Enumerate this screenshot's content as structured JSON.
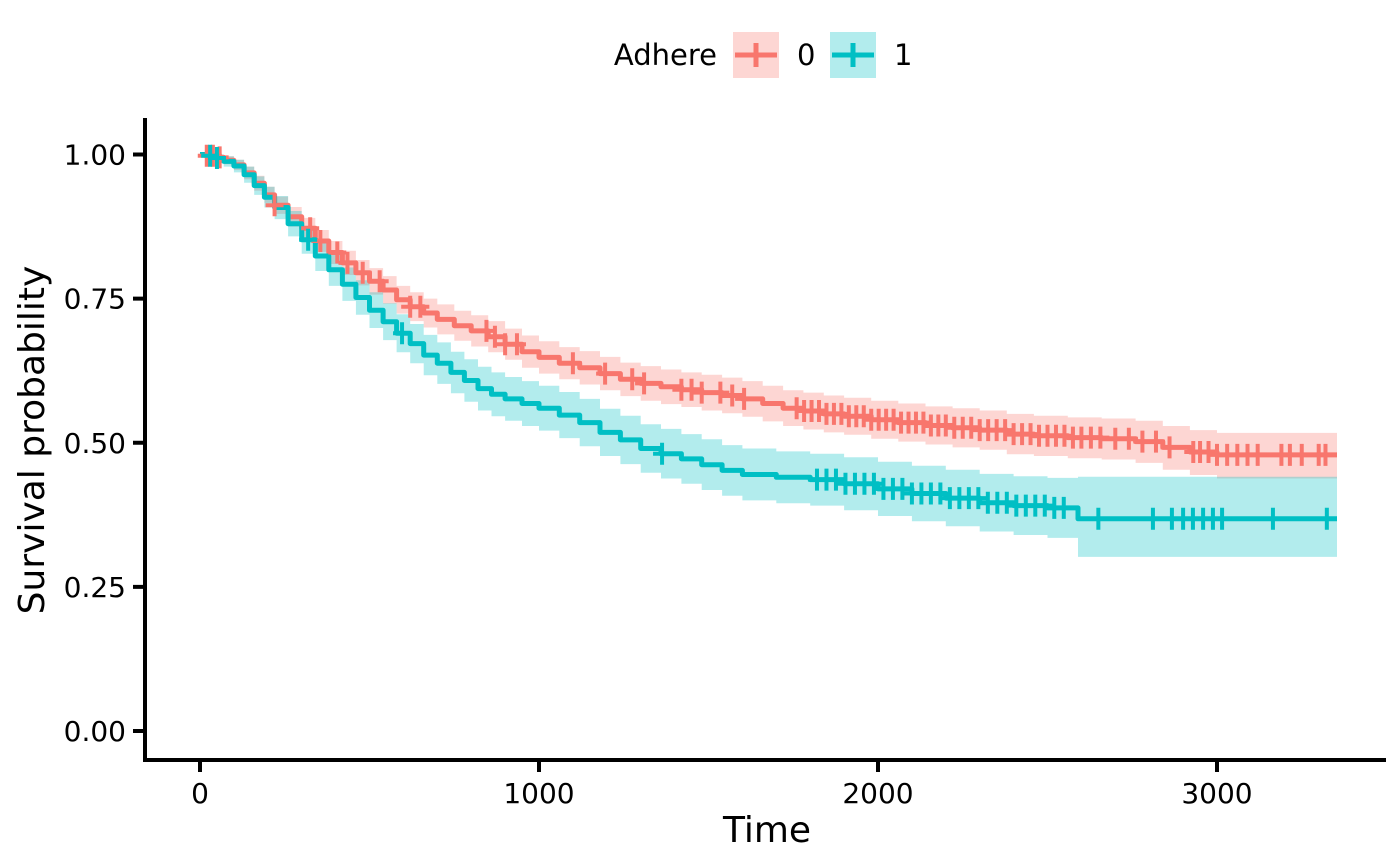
{
  "chart_data": {
    "type": "line",
    "subtype": "kaplan-meier-survival-curves",
    "title": "",
    "xlabel": "Time",
    "ylabel": "Survival probability",
    "x_tick_values": [
      0,
      1000,
      2000,
      3000
    ],
    "x_tick_labels": [
      "0",
      "1000",
      "2000",
      "3000"
    ],
    "y_tick_values": [
      1.0,
      0.75,
      0.5,
      0.25,
      0.0
    ],
    "y_tick_labels": [
      "1.00",
      "0.75",
      "0.50",
      "0.25",
      "0.00"
    ],
    "xlim": [
      0,
      3490
    ],
    "ylim": [
      0,
      1
    ],
    "grid": false,
    "band_opacity": 0.3,
    "axis_color": "#000000",
    "legend": {
      "title": "Adhere",
      "position": "top",
      "entries": [
        {
          "label": "0",
          "color": "#F8766D"
        },
        {
          "label": "1",
          "color": "#00BFC4"
        }
      ]
    },
    "series": [
      {
        "name": "0",
        "color": "#F8766D",
        "points": [
          [
            0,
            1.0,
            1.0,
            1.0
          ],
          [
            20,
            0.998,
            0.994,
            1.0
          ],
          [
            45,
            0.995,
            0.99,
            1.0
          ],
          [
            70,
            0.99,
            0.983,
            0.997
          ],
          [
            100,
            0.982,
            0.973,
            0.991
          ],
          [
            130,
            0.968,
            0.957,
            0.979
          ],
          [
            160,
            0.95,
            0.937,
            0.963
          ],
          [
            190,
            0.93,
            0.916,
            0.944
          ],
          [
            220,
            0.912,
            0.897,
            0.927
          ],
          [
            260,
            0.892,
            0.875,
            0.909
          ],
          [
            300,
            0.872,
            0.854,
            0.89
          ],
          [
            340,
            0.85,
            0.831,
            0.869
          ],
          [
            380,
            0.83,
            0.81,
            0.85
          ],
          [
            420,
            0.812,
            0.791,
            0.833
          ],
          [
            460,
            0.795,
            0.773,
            0.817
          ],
          [
            500,
            0.78,
            0.757,
            0.803
          ],
          [
            540,
            0.765,
            0.741,
            0.789
          ],
          [
            580,
            0.748,
            0.724,
            0.772
          ],
          [
            620,
            0.736,
            0.711,
            0.761
          ],
          [
            660,
            0.725,
            0.7,
            0.75
          ],
          [
            700,
            0.714,
            0.688,
            0.74
          ],
          [
            750,
            0.703,
            0.677,
            0.729
          ],
          [
            800,
            0.694,
            0.667,
            0.721
          ],
          [
            850,
            0.684,
            0.657,
            0.711
          ],
          [
            900,
            0.671,
            0.644,
            0.698
          ],
          [
            950,
            0.658,
            0.63,
            0.686
          ],
          [
            1000,
            0.648,
            0.62,
            0.676
          ],
          [
            1060,
            0.638,
            0.61,
            0.666
          ],
          [
            1120,
            0.63,
            0.601,
            0.659
          ],
          [
            1180,
            0.62,
            0.591,
            0.649
          ],
          [
            1240,
            0.61,
            0.581,
            0.639
          ],
          [
            1300,
            0.603,
            0.573,
            0.633
          ],
          [
            1360,
            0.597,
            0.567,
            0.627
          ],
          [
            1420,
            0.592,
            0.562,
            0.622
          ],
          [
            1480,
            0.587,
            0.556,
            0.618
          ],
          [
            1540,
            0.582,
            0.551,
            0.613
          ],
          [
            1600,
            0.576,
            0.545,
            0.607
          ],
          [
            1660,
            0.568,
            0.537,
            0.599
          ],
          [
            1720,
            0.56,
            0.529,
            0.591
          ],
          [
            1780,
            0.555,
            0.523,
            0.587
          ],
          [
            1840,
            0.55,
            0.518,
            0.582
          ],
          [
            1900,
            0.546,
            0.514,
            0.578
          ],
          [
            1980,
            0.54,
            0.507,
            0.573
          ],
          [
            2060,
            0.535,
            0.502,
            0.568
          ],
          [
            2140,
            0.53,
            0.497,
            0.563
          ],
          [
            2220,
            0.526,
            0.492,
            0.56
          ],
          [
            2300,
            0.522,
            0.488,
            0.556
          ],
          [
            2380,
            0.515,
            0.48,
            0.55
          ],
          [
            2460,
            0.512,
            0.477,
            0.547
          ],
          [
            2560,
            0.509,
            0.473,
            0.544
          ],
          [
            2660,
            0.507,
            0.471,
            0.542
          ],
          [
            2760,
            0.502,
            0.465,
            0.538
          ],
          [
            2840,
            0.492,
            0.453,
            0.529
          ],
          [
            2920,
            0.484,
            0.444,
            0.522
          ],
          [
            3000,
            0.479,
            0.438,
            0.517
          ],
          [
            3354,
            0.479,
            0.438,
            0.517
          ]
        ],
        "censor_times": [
          20,
          38,
          58,
          220,
          325,
          355,
          405,
          435,
          480,
          530,
          620,
          650,
          845,
          870,
          900,
          935,
          1100,
          1195,
          1275,
          1310,
          1420,
          1450,
          1480,
          1535,
          1570,
          1605,
          1760,
          1782,
          1804,
          1826,
          1848,
          1870,
          1892,
          1914,
          1936,
          1958,
          1980,
          2002,
          2024,
          2046,
          2068,
          2090,
          2112,
          2134,
          2156,
          2178,
          2200,
          2225,
          2250,
          2275,
          2300,
          2325,
          2350,
          2375,
          2400,
          2425,
          2450,
          2475,
          2500,
          2525,
          2550,
          2575,
          2600,
          2628,
          2656,
          2700,
          2740,
          2780,
          2820,
          2860,
          2930,
          2950,
          2975,
          3000,
          3030,
          3060,
          3090,
          3120,
          3190,
          3215,
          3250,
          3300,
          3320
        ]
      },
      {
        "name": "1",
        "color": "#00BFC4",
        "points": [
          [
            0,
            1.0,
            1.0,
            1.0
          ],
          [
            20,
            0.998,
            0.993,
            1.0
          ],
          [
            45,
            0.994,
            0.987,
            1.0
          ],
          [
            70,
            0.988,
            0.979,
            0.997
          ],
          [
            100,
            0.98,
            0.969,
            0.991
          ],
          [
            130,
            0.965,
            0.951,
            0.979
          ],
          [
            160,
            0.946,
            0.93,
            0.962
          ],
          [
            190,
            0.926,
            0.908,
            0.944
          ],
          [
            220,
            0.908,
            0.888,
            0.928
          ],
          [
            260,
            0.88,
            0.858,
            0.902
          ],
          [
            300,
            0.852,
            0.828,
            0.876
          ],
          [
            340,
            0.824,
            0.798,
            0.85
          ],
          [
            380,
            0.8,
            0.772,
            0.828
          ],
          [
            420,
            0.775,
            0.746,
            0.804
          ],
          [
            460,
            0.752,
            0.722,
            0.782
          ],
          [
            500,
            0.73,
            0.699,
            0.761
          ],
          [
            540,
            0.71,
            0.678,
            0.742
          ],
          [
            580,
            0.69,
            0.657,
            0.723
          ],
          [
            620,
            0.672,
            0.638,
            0.706
          ],
          [
            660,
            0.652,
            0.617,
            0.687
          ],
          [
            700,
            0.638,
            0.602,
            0.674
          ],
          [
            740,
            0.622,
            0.586,
            0.658
          ],
          [
            780,
            0.608,
            0.571,
            0.645
          ],
          [
            820,
            0.594,
            0.556,
            0.632
          ],
          [
            860,
            0.584,
            0.546,
            0.622
          ],
          [
            900,
            0.576,
            0.538,
            0.614
          ],
          [
            950,
            0.568,
            0.529,
            0.607
          ],
          [
            1000,
            0.56,
            0.521,
            0.599
          ],
          [
            1060,
            0.548,
            0.508,
            0.588
          ],
          [
            1120,
            0.535,
            0.494,
            0.576
          ],
          [
            1180,
            0.518,
            0.477,
            0.559
          ],
          [
            1240,
            0.505,
            0.463,
            0.547
          ],
          [
            1300,
            0.49,
            0.448,
            0.532
          ],
          [
            1360,
            0.481,
            0.438,
            0.524
          ],
          [
            1420,
            0.472,
            0.429,
            0.515
          ],
          [
            1480,
            0.462,
            0.418,
            0.506
          ],
          [
            1540,
            0.452,
            0.408,
            0.496
          ],
          [
            1600,
            0.445,
            0.4,
            0.49
          ],
          [
            1700,
            0.44,
            0.395,
            0.485
          ],
          [
            1800,
            0.436,
            0.391,
            0.481
          ],
          [
            1900,
            0.429,
            0.383,
            0.475
          ],
          [
            2000,
            0.42,
            0.373,
            0.467
          ],
          [
            2100,
            0.412,
            0.364,
            0.46
          ],
          [
            2200,
            0.404,
            0.355,
            0.453
          ],
          [
            2300,
            0.396,
            0.346,
            0.446
          ],
          [
            2400,
            0.391,
            0.34,
            0.442
          ],
          [
            2500,
            0.387,
            0.335,
            0.439
          ],
          [
            2590,
            0.368,
            0.302,
            0.441
          ],
          [
            3354,
            0.368,
            0.3,
            0.441
          ]
        ],
        "censor_times": [
          30,
          50,
          319,
          596,
          1363,
          1820,
          1848,
          1876,
          1904,
          1932,
          1960,
          1988,
          2016,
          2044,
          2072,
          2100,
          2128,
          2156,
          2184,
          2212,
          2240,
          2268,
          2296,
          2324,
          2352,
          2380,
          2408,
          2436,
          2464,
          2492,
          2520,
          2548,
          2650,
          2811,
          2867,
          2900,
          2929,
          2959,
          2988,
          3015,
          3165,
          3324
        ]
      }
    ]
  }
}
